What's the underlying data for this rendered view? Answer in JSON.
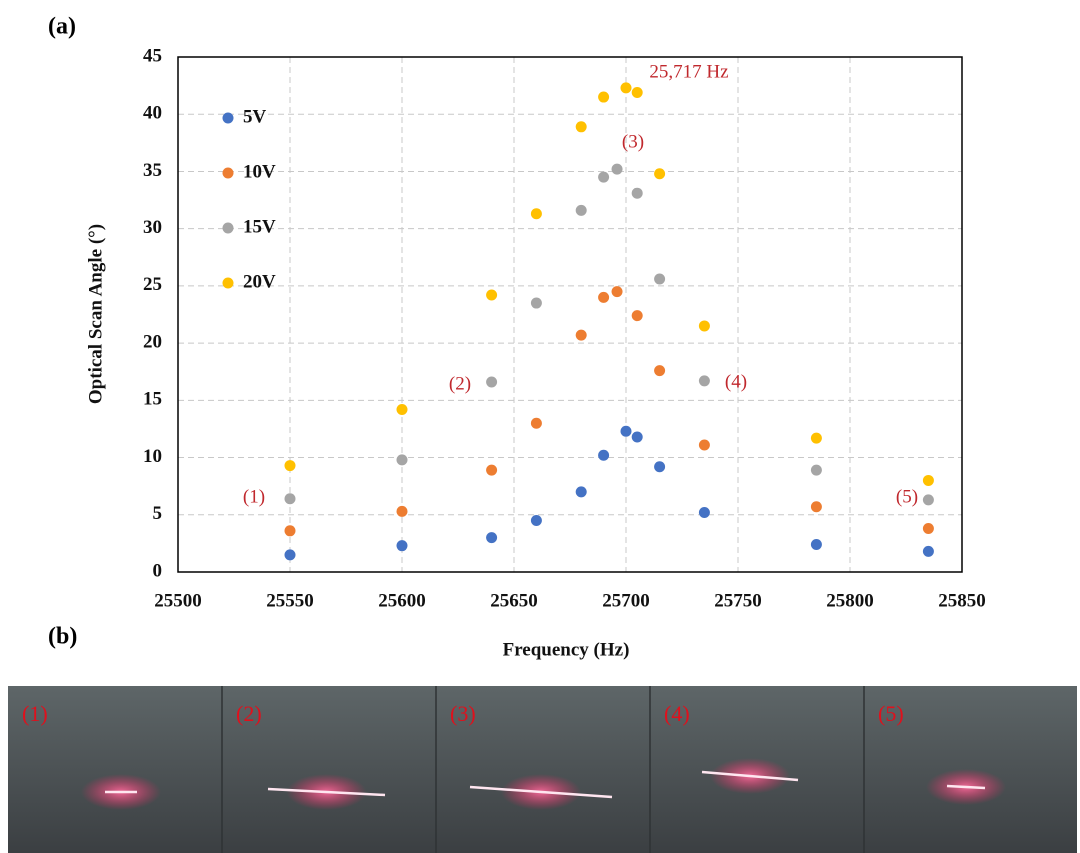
{
  "panel_labels": [
    "(a)",
    "(b)"
  ],
  "chart_data": {
    "type": "scatter",
    "xlabel": "Frequency (Hz)",
    "ylabel": "Optical Scan Angle (°)",
    "xlim": [
      25500,
      25850
    ],
    "xticks": [
      25500,
      25550,
      25600,
      25650,
      25700,
      25750,
      25800,
      25850
    ],
    "ylim": [
      0,
      45
    ],
    "yticks": [
      0,
      5,
      10,
      15,
      20,
      25,
      30,
      35,
      40,
      45
    ],
    "grid": true,
    "legend": "upper left",
    "annotations": [
      "(1)",
      "(2)",
      "(3)",
      "(4)",
      "(5)",
      "25,717 Hz"
    ],
    "series": [
      {
        "name": "5V",
        "color": "#4472c4",
        "x": [
          25550,
          25600,
          25640,
          25660,
          25680,
          25690,
          25700,
          25705,
          25715,
          25735,
          25785,
          25835
        ],
        "values": [
          1.5,
          2.3,
          3.0,
          4.5,
          7.0,
          10.2,
          12.3,
          11.8,
          9.2,
          5.2,
          2.4,
          1.8
        ]
      },
      {
        "name": "10V",
        "color": "#ed7d31",
        "x": [
          25550,
          25600,
          25640,
          25660,
          25680,
          25690,
          25696,
          25705,
          25715,
          25735,
          25785,
          25835
        ],
        "values": [
          3.6,
          5.3,
          8.9,
          13.0,
          20.7,
          24.0,
          24.5,
          22.4,
          17.6,
          11.1,
          5.7,
          3.8
        ]
      },
      {
        "name": "15V",
        "color": "#a5a5a5",
        "x": [
          25550,
          25600,
          25640,
          25660,
          25680,
          25690,
          25696,
          25705,
          25715,
          25735,
          25785,
          25835
        ],
        "values": [
          6.4,
          9.8,
          16.6,
          23.5,
          31.6,
          34.5,
          35.2,
          33.1,
          25.6,
          16.7,
          8.9,
          6.3
        ]
      },
      {
        "name": "20V",
        "color": "#ffc000",
        "x": [
          25550,
          25600,
          25640,
          25660,
          25680,
          25690,
          25700,
          25705,
          25715,
          25735,
          25785,
          25835
        ],
        "values": [
          9.3,
          14.2,
          24.2,
          31.3,
          38.9,
          41.5,
          42.3,
          41.9,
          34.8,
          21.5,
          11.7,
          8.0
        ]
      }
    ]
  },
  "photo_labels": [
    "(1)",
    "(2)",
    "(3)",
    "(4)",
    "(5)"
  ]
}
